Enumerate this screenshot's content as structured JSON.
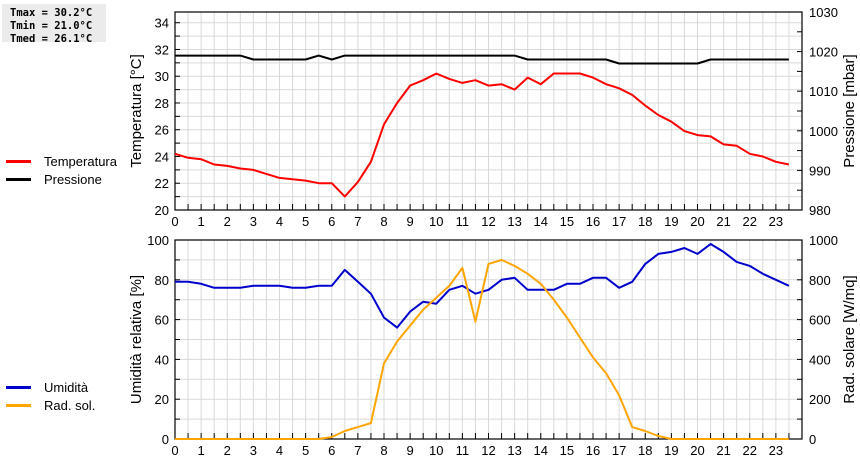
{
  "stats": {
    "tmax": "Tmax = 30.2°C",
    "tmin": "Tmin = 21.0°C",
    "tmed": "Tmed = 26.1°C"
  },
  "legend_top": [
    {
      "label": "Temperatura",
      "color": "#ff0000"
    },
    {
      "label": "Pressione",
      "color": "#000000"
    }
  ],
  "legend_bottom": [
    {
      "label": "Umidità",
      "color": "#0000cc"
    },
    {
      "label": "Rad. sol.",
      "color": "#ffa500"
    }
  ],
  "chart_data": [
    {
      "type": "line",
      "title": "",
      "xlabel": "",
      "ylabel": "Temperatura [°C]",
      "y2label": "Pressione [mbar]",
      "xlim": [
        0,
        24
      ],
      "ylim": [
        20,
        34.8
      ],
      "y2lim": [
        980,
        1030
      ],
      "grid": true,
      "legend_position": "left",
      "x_ticks": [
        0,
        1,
        2,
        3,
        4,
        5,
        6,
        7,
        8,
        9,
        10,
        11,
        12,
        13,
        14,
        15,
        16,
        17,
        18,
        19,
        20,
        21,
        22,
        23
      ],
      "y_ticks": [
        20,
        22,
        24,
        26,
        28,
        30,
        32,
        34
      ],
      "y2_ticks": [
        980,
        990,
        1000,
        1010,
        1020,
        1030
      ],
      "x": [
        0,
        0.5,
        1,
        1.5,
        2,
        2.5,
        3,
        3.5,
        4,
        4.5,
        5,
        5.5,
        6,
        6.5,
        7,
        7.5,
        8,
        8.5,
        9,
        9.5,
        10,
        10.5,
        11,
        11.5,
        12,
        12.5,
        13,
        13.5,
        14,
        14.5,
        15,
        15.5,
        16,
        16.5,
        17,
        17.5,
        18,
        18.5,
        19,
        19.5,
        20,
        20.5,
        21,
        21.5,
        22,
        22.5,
        23,
        23.5
      ],
      "series": [
        {
          "name": "Temperatura",
          "axis": "left",
          "color": "#ff0000",
          "values": [
            24.2,
            23.9,
            23.8,
            23.4,
            23.3,
            23.1,
            23.0,
            22.7,
            22.4,
            22.3,
            22.2,
            22.0,
            22.0,
            21.0,
            22.1,
            23.6,
            26.4,
            28.0,
            29.3,
            29.7,
            30.2,
            29.8,
            29.5,
            29.7,
            29.3,
            29.4,
            29.0,
            29.9,
            29.4,
            30.2,
            30.2,
            30.2,
            29.9,
            29.4,
            29.1,
            28.6,
            27.8,
            27.1,
            26.6,
            25.9,
            25.6,
            25.5,
            24.9,
            24.8,
            24.2,
            24.0,
            23.6,
            23.4
          ]
        },
        {
          "name": "Pressione",
          "axis": "right",
          "color": "#000000",
          "values": [
            1019,
            1019,
            1019,
            1019,
            1019,
            1019,
            1018,
            1018,
            1018,
            1018,
            1018,
            1019,
            1018,
            1019,
            1019,
            1019,
            1019,
            1019,
            1019,
            1019,
            1019,
            1019,
            1019,
            1019,
            1019,
            1019,
            1019,
            1018,
            1018,
            1018,
            1018,
            1018,
            1018,
            1018,
            1017,
            1017,
            1017,
            1017,
            1017,
            1017,
            1017,
            1018,
            1018,
            1018,
            1018,
            1018,
            1018,
            1018
          ]
        }
      ]
    },
    {
      "type": "line",
      "title": "",
      "xlabel": "",
      "ylabel": "Umidità relativa [%]",
      "y2label": "Rad. solare [W/mq]",
      "xlim": [
        0,
        24
      ],
      "ylim": [
        0,
        100
      ],
      "y2lim": [
        0,
        1000
      ],
      "grid": true,
      "legend_position": "left",
      "x_ticks": [
        0,
        1,
        2,
        3,
        4,
        5,
        6,
        7,
        8,
        9,
        10,
        11,
        12,
        13,
        14,
        15,
        16,
        17,
        18,
        19,
        20,
        21,
        22,
        23
      ],
      "y_ticks": [
        0,
        20,
        40,
        60,
        80,
        100
      ],
      "y2_ticks": [
        0,
        200,
        400,
        600,
        800,
        1000
      ],
      "x": [
        0,
        0.5,
        1,
        1.5,
        2,
        2.5,
        3,
        3.5,
        4,
        4.5,
        5,
        5.5,
        6,
        6.5,
        7,
        7.5,
        8,
        8.5,
        9,
        9.5,
        10,
        10.5,
        11,
        11.5,
        12,
        12.5,
        13,
        13.5,
        14,
        14.5,
        15,
        15.5,
        16,
        16.5,
        17,
        17.5,
        18,
        18.5,
        19,
        19.5,
        20,
        20.5,
        21,
        21.5,
        22,
        22.5,
        23,
        23.5
      ],
      "series": [
        {
          "name": "Umidità",
          "axis": "left",
          "color": "#0000cc",
          "values": [
            79,
            79,
            78,
            76,
            76,
            76,
            77,
            77,
            77,
            76,
            76,
            77,
            77,
            85,
            79,
            73,
            61,
            56,
            64,
            69,
            68,
            75,
            77,
            73,
            75,
            80,
            81,
            75,
            75,
            75,
            78,
            78,
            81,
            81,
            76,
            79,
            88,
            93,
            94,
            96,
            93,
            98,
            94,
            89,
            87,
            83,
            80,
            77
          ]
        },
        {
          "name": "Rad. sol.",
          "axis": "right",
          "color": "#ffa500",
          "values": [
            0,
            0,
            0,
            0,
            0,
            0,
            0,
            0,
            0,
            0,
            0,
            0,
            10,
            40,
            60,
            80,
            380,
            490,
            570,
            650,
            710,
            770,
            860,
            590,
            880,
            900,
            870,
            830,
            780,
            700,
            610,
            510,
            410,
            330,
            220,
            60,
            40,
            15,
            0,
            0,
            0,
            0,
            0,
            0,
            0,
            0,
            0,
            0
          ]
        }
      ]
    }
  ]
}
